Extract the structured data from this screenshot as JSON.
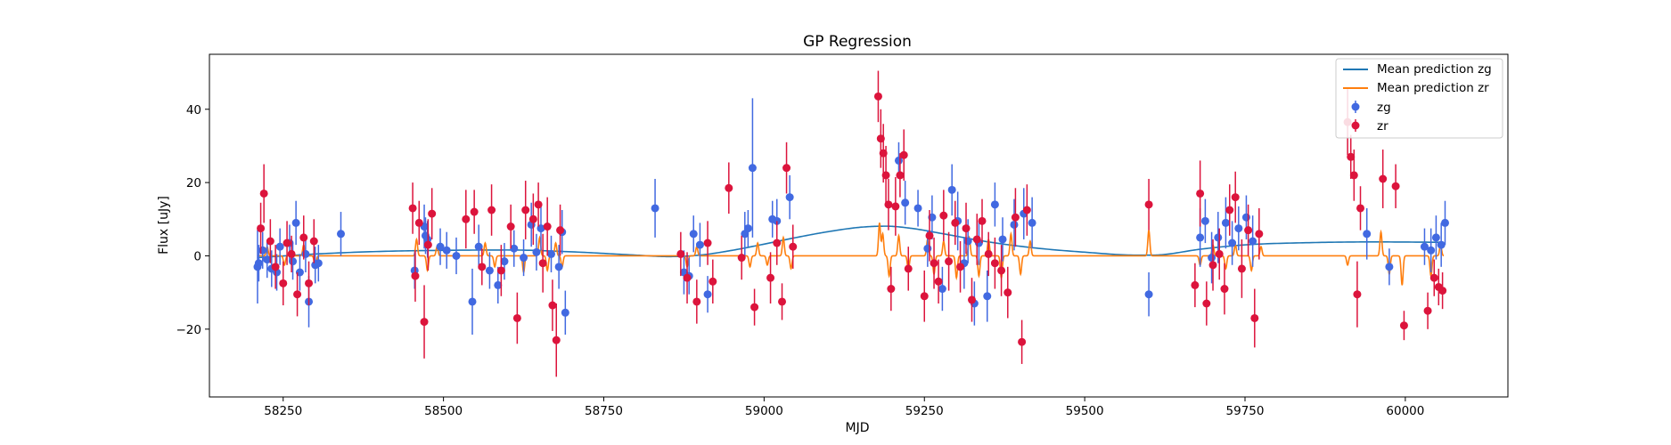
{
  "chart_data": {
    "type": "scatter",
    "title": "GP Regression",
    "xlabel": "MJD",
    "ylabel": "Flux [uJy]",
    "xlim": [
      58135,
      60160
    ],
    "ylim": [
      -38.5,
      55
    ],
    "xticks": [
      58250,
      58500,
      58750,
      59000,
      59250,
      59500,
      59750,
      60000
    ],
    "yticks": [
      -20,
      0,
      20,
      40
    ],
    "legend": {
      "location": "top-right",
      "entries": [
        "Mean prediction zg",
        "Mean prediction zr",
        "zg",
        "zr"
      ]
    },
    "colors": {
      "zg": "#4169e1",
      "zr": "#dc143c",
      "mean_zg": "#1f77b4",
      "mean_zr": "#ff7f0e"
    },
    "series": [
      {
        "name": "Mean prediction zg",
        "kind": "line",
        "color": "#1f77b4",
        "x": [
          58210,
          58300,
          58400,
          58500,
          58600,
          58700,
          58800,
          58850,
          58900,
          58950,
          59000,
          59050,
          59100,
          59150,
          59190,
          59230,
          59280,
          59350,
          59420,
          59500,
          59580,
          59620,
          59680,
          59750,
          59850,
          59950,
          60060
        ],
        "y": [
          -0.5,
          0.5,
          1.2,
          1.5,
          1.6,
          1.1,
          0.2,
          -0.2,
          0.2,
          1.5,
          3.2,
          5.0,
          6.6,
          7.8,
          8.1,
          7.5,
          6.0,
          3.8,
          2.2,
          1.0,
          0.2,
          0.3,
          1.8,
          3.0,
          3.6,
          3.8,
          3.7
        ]
      },
      {
        "name": "Mean prediction zr",
        "kind": "line",
        "color": "#ff7f0e",
        "baseline": 0.0,
        "bumps": [
          [
            58225,
            2.5
          ],
          [
            58252,
            -2.5
          ],
          [
            58282,
            3.0
          ],
          [
            58300,
            -3.5
          ],
          [
            58458,
            4.5
          ],
          [
            58475,
            -4.0
          ],
          [
            58490,
            2.5
          ],
          [
            58565,
            3.5
          ],
          [
            58580,
            -3.0
          ],
          [
            58625,
            -4.5
          ],
          [
            58650,
            5.0
          ],
          [
            58662,
            -4.0
          ],
          [
            58675,
            3.5
          ],
          [
            58685,
            -3.0
          ],
          [
            58880,
            -3.0
          ],
          [
            58895,
            2.5
          ],
          [
            58978,
            -3.0
          ],
          [
            58990,
            3.5
          ],
          [
            59005,
            -2.5
          ],
          [
            59030,
            5.0
          ],
          [
            59042,
            -3.5
          ],
          [
            59180,
            9.0
          ],
          [
            59185,
            6.0
          ],
          [
            59195,
            -5.5
          ],
          [
            59210,
            5.5
          ],
          [
            59225,
            -4.0
          ],
          [
            59255,
            4.5
          ],
          [
            59265,
            -5.0
          ],
          [
            59280,
            4.0
          ],
          [
            59300,
            -6.0
          ],
          [
            59320,
            5.0
          ],
          [
            59335,
            -5.5
          ],
          [
            59350,
            4.5
          ],
          [
            59370,
            -6.0
          ],
          [
            59385,
            6.0
          ],
          [
            59400,
            -5.0
          ],
          [
            59415,
            4.0
          ],
          [
            59600,
            7.0
          ],
          [
            59680,
            -2.5
          ],
          [
            59700,
            3.0
          ],
          [
            59720,
            -3.5
          ],
          [
            59735,
            3.0
          ],
          [
            59760,
            -4.0
          ],
          [
            59775,
            2.5
          ],
          [
            59910,
            -2.5
          ],
          [
            59962,
            6.5
          ],
          [
            59975,
            -5.0
          ],
          [
            59995,
            -8.0
          ],
          [
            60040,
            -5.5
          ],
          [
            60055,
            3.0
          ]
        ]
      },
      {
        "name": "zg",
        "kind": "errorbar",
        "color": "#4169e1",
        "x": [
          58210,
          58212,
          58218,
          58225,
          58232,
          58240,
          58245,
          58260,
          58265,
          58270,
          58276,
          58285,
          58290,
          58300,
          58305,
          58340,
          58455,
          58470,
          58472,
          58475,
          58495,
          58505,
          58520,
          58545,
          58555,
          58572,
          58585,
          58595,
          58610,
          58625,
          58637,
          58645,
          58652,
          58668,
          58680,
          58685,
          58690,
          58830,
          58875,
          58883,
          58890,
          58900,
          58912,
          58970,
          58975,
          58982,
          59013,
          59020,
          59040,
          59210,
          59220,
          59240,
          59255,
          59262,
          59278,
          59293,
          59302,
          59312,
          59318,
          59328,
          59335,
          59348,
          59360,
          59372,
          59390,
          59405,
          59418,
          59600,
          59680,
          59688,
          59698,
          59708,
          59720,
          59730,
          59740,
          59752,
          59762,
          59940,
          59975,
          60030,
          60040,
          60048,
          60056,
          60062
        ],
        "y": [
          -3.0,
          -2.0,
          1.5,
          -1.0,
          -3.5,
          -4.5,
          2.5,
          3.5,
          -1.5,
          9.0,
          -4.5,
          0.5,
          -12.5,
          -2.5,
          -2.0,
          6.0,
          -4.0,
          8.0,
          5.5,
          4.5,
          2.5,
          1.5,
          0.0,
          -12.5,
          2.5,
          -4.0,
          -8.0,
          -1.5,
          2.0,
          -0.5,
          8.5,
          1.0,
          7.5,
          0.5,
          -3.0,
          6.5,
          -15.5,
          13.0,
          -4.5,
          -5.5,
          6.0,
          3.0,
          -10.5,
          6.0,
          7.5,
          24.0,
          10.0,
          9.5,
          16.0,
          26.0,
          14.5,
          13.0,
          2.0,
          10.5,
          -9.0,
          18.0,
          9.5,
          -2.0,
          4.0,
          -13.0,
          3.5,
          -11.0,
          14.0,
          4.5,
          8.5,
          11.5,
          9.0,
          -10.5,
          5.0,
          9.5,
          -0.5,
          5.0,
          9.0,
          3.5,
          7.5,
          10.5,
          4.0,
          6.0,
          -3.0,
          2.5,
          1.5,
          5.0,
          3.0,
          9.0
        ],
        "err": [
          10,
          5,
          5,
          5,
          5,
          5,
          5,
          5,
          5,
          6,
          5,
          5,
          7,
          5,
          5,
          6,
          5,
          6,
          5,
          5,
          5,
          5,
          5,
          9,
          6,
          5,
          5,
          5,
          5,
          5,
          6,
          5,
          6,
          5,
          6,
          6,
          6,
          8,
          6,
          5,
          5,
          6,
          5,
          6,
          5,
          19,
          5,
          6,
          6,
          5,
          6,
          5,
          5,
          6,
          6,
          7,
          8,
          7,
          6,
          6,
          6,
          7,
          6,
          6,
          7,
          7,
          7,
          6,
          8,
          6,
          7,
          7,
          7,
          6,
          6,
          6,
          7,
          7,
          5,
          5,
          6,
          6,
          6,
          6
        ]
      },
      {
        "name": "zr",
        "kind": "errorbar",
        "color": "#dc143c",
        "x": [
          58215,
          58220,
          58230,
          58238,
          58250,
          58256,
          58263,
          58272,
          58282,
          58290,
          58298,
          58452,
          58456,
          58462,
          58470,
          58476,
          58482,
          58535,
          58548,
          58560,
          58575,
          58590,
          58605,
          58615,
          58628,
          58640,
          58648,
          58655,
          58662,
          58670,
          58676,
          58682,
          58870,
          58880,
          58895,
          58912,
          58920,
          58945,
          58965,
          58985,
          59010,
          59020,
          59028,
          59035,
          59045,
          59178,
          59182,
          59186,
          59190,
          59194,
          59198,
          59205,
          59212,
          59218,
          59225,
          59250,
          59258,
          59265,
          59272,
          59280,
          59288,
          59298,
          59306,
          59315,
          59324,
          59332,
          59340,
          59350,
          59360,
          59370,
          59380,
          59392,
          59402,
          59410,
          59600,
          59672,
          59680,
          59690,
          59700,
          59710,
          59718,
          59726,
          59735,
          59745,
          59755,
          59765,
          59772,
          59910,
          59915,
          59920,
          59925,
          59930,
          59965,
          59985,
          59998,
          60035,
          60045,
          60052,
          60058
        ],
        "y": [
          7.5,
          17.0,
          4.0,
          -3.0,
          -7.5,
          3.5,
          0.5,
          -10.5,
          5.0,
          -7.5,
          4.0,
          13.0,
          -5.5,
          9.0,
          -18.0,
          3.0,
          11.5,
          10.0,
          12.0,
          -3.0,
          12.5,
          -4.0,
          8.0,
          -17.0,
          12.5,
          10.0,
          14.0,
          -2.0,
          8.0,
          -13.5,
          -23.0,
          7.0,
          0.5,
          -6.0,
          -12.5,
          3.5,
          -7.0,
          18.5,
          -0.5,
          -14.0,
          -6.0,
          3.5,
          -12.5,
          24.0,
          2.5,
          43.5,
          32.0,
          28.0,
          22.0,
          14.0,
          -9.0,
          13.5,
          22.0,
          27.5,
          -3.5,
          -11.0,
          5.5,
          -2.0,
          -7.0,
          11.0,
          -1.5,
          9.0,
          -3.0,
          7.5,
          -12.0,
          4.5,
          9.5,
          0.5,
          -2.0,
          -4.0,
          -10.0,
          10.5,
          -23.5,
          12.5,
          14.0,
          -8.0,
          17.0,
          -13.0,
          -2.5,
          0.5,
          -9.0,
          12.5,
          16.0,
          -3.5,
          7.0,
          -17.0,
          6.0,
          36.5,
          27.0,
          22.0,
          -10.5,
          13.0,
          21.0,
          19.0,
          -19.0,
          -15.0,
          -6.0,
          -8.5,
          -9.5
        ],
        "err": [
          7,
          8,
          6,
          6,
          6,
          6,
          5,
          6,
          6,
          6,
          6,
          7,
          7,
          6,
          10,
          7,
          7,
          8,
          6,
          5,
          7,
          7,
          6,
          7,
          8,
          7,
          6,
          8,
          8,
          7,
          10,
          7,
          6,
          7,
          6,
          6,
          6,
          7,
          6,
          5,
          7,
          6,
          5,
          7,
          6,
          7,
          8,
          8,
          8,
          7,
          6,
          8,
          6,
          7,
          6,
          7,
          7,
          7,
          6,
          7,
          8,
          6,
          7,
          7,
          6,
          7,
          6,
          6,
          7,
          7,
          7,
          8,
          6,
          7,
          7,
          6,
          9,
          6,
          7,
          7,
          7,
          7,
          7,
          8,
          7,
          8,
          7,
          9,
          6,
          7,
          9,
          6,
          8,
          6,
          4,
          5,
          5,
          5,
          5
        ]
      }
    ]
  }
}
